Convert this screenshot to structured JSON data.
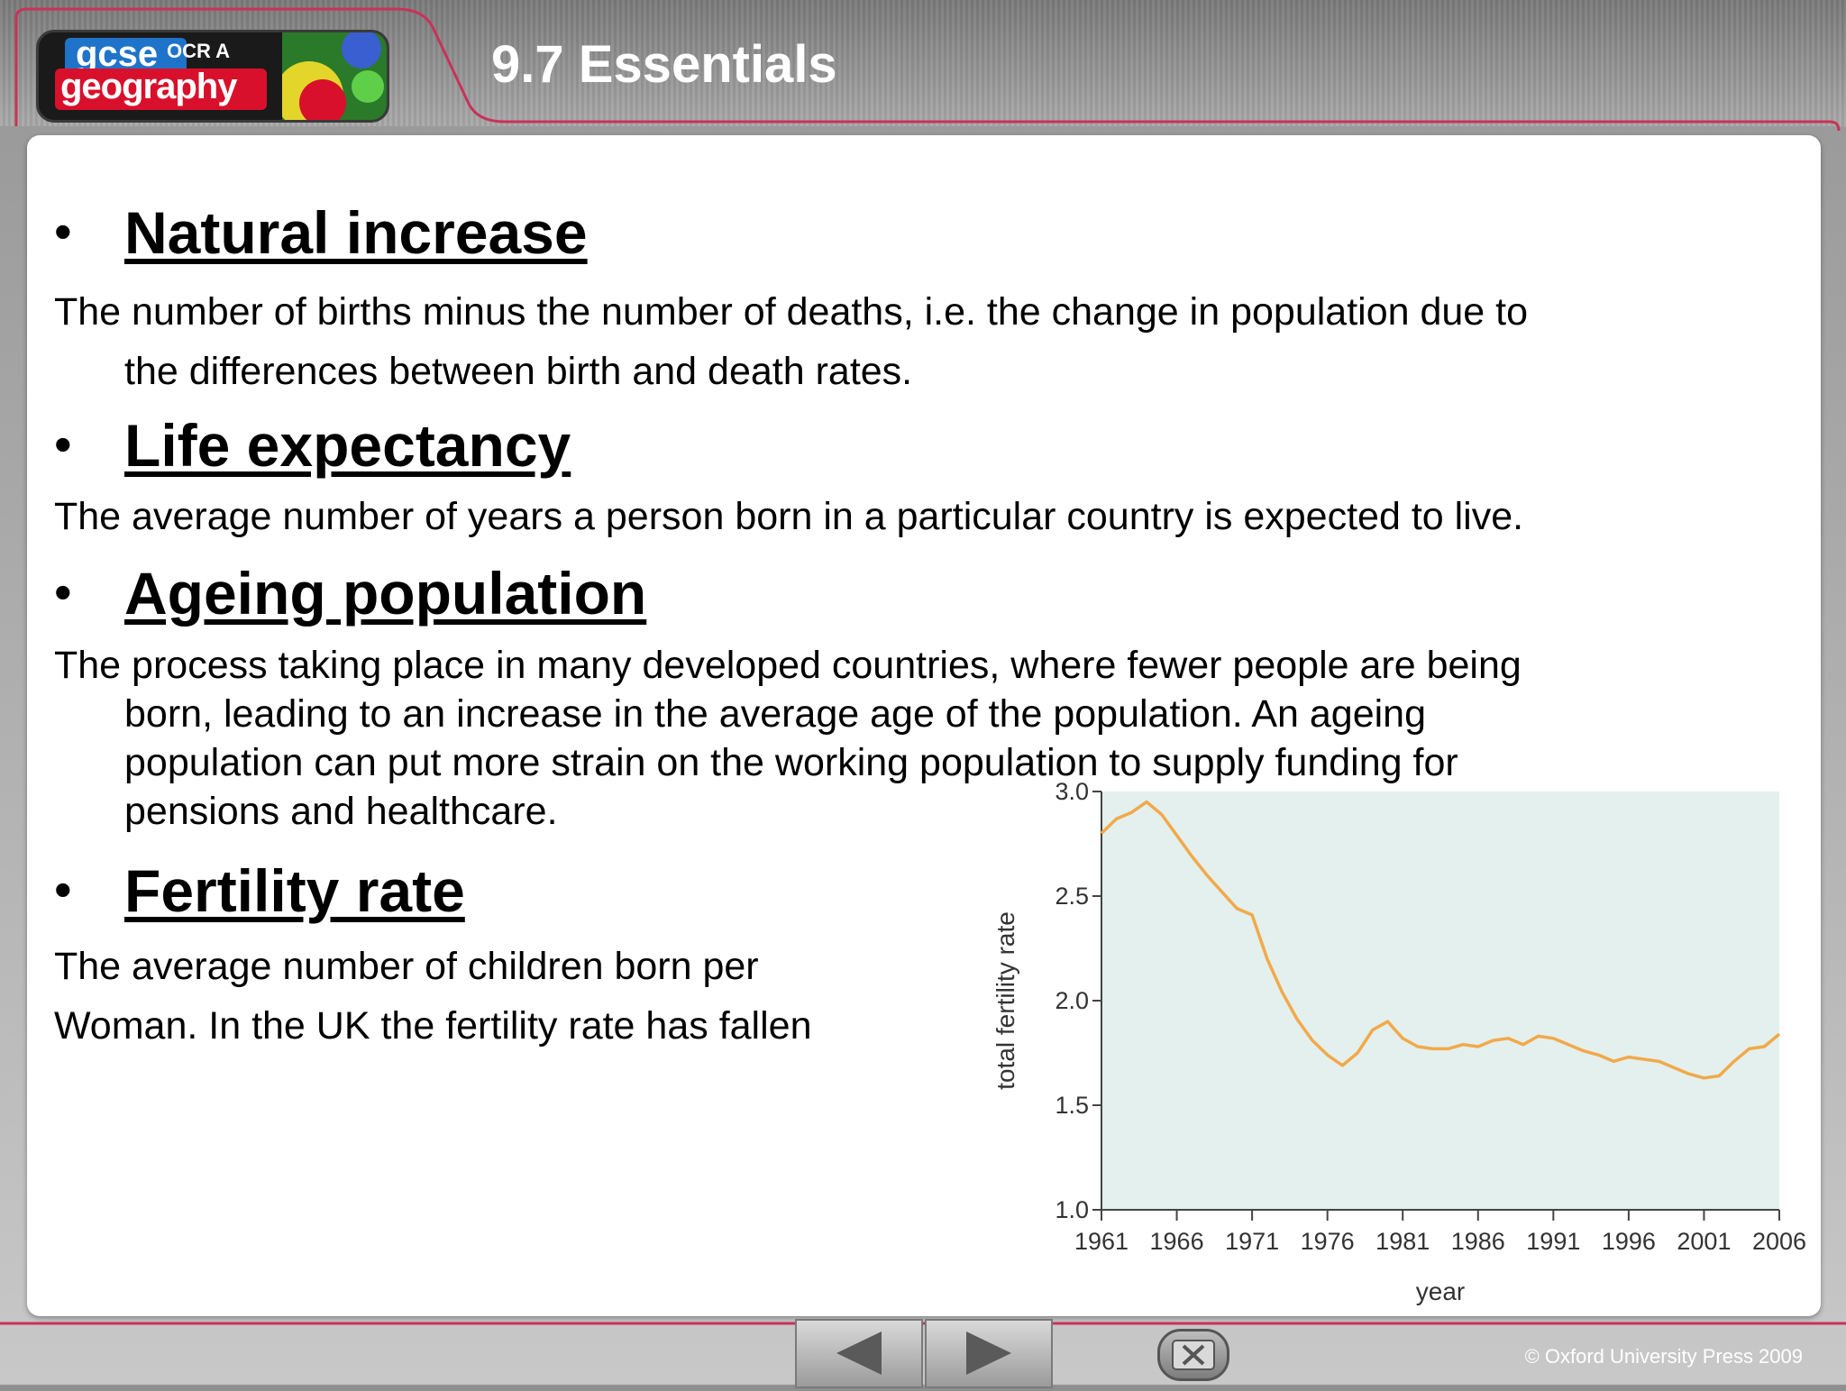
{
  "logo": {
    "gcse": "gcse",
    "board": "OCR A",
    "subject": "geography"
  },
  "header": {
    "title": "9.7 Essentials"
  },
  "sections": [
    {
      "term": "Natural increase",
      "def_first": "The number of births minus the number of deaths, i.e. the change in population due to",
      "def_rest": "the differences between birth and death rates."
    },
    {
      "term": "Life expectancy",
      "def_first": "The average number of years a person born in a particular country is expected to live.",
      "def_rest": ""
    },
    {
      "term": "Ageing population",
      "def_first": "The process taking place in many developed countries, where fewer people are being",
      "def_rest": "born, leading to an increase in the average age of the population. An ageing population can put more strain on the working population to supply funding for pensions and healthcare."
    },
    {
      "term": "Fertility rate",
      "def_first": "The average number of children born per",
      "def_rest": "Woman. In the UK the fertility rate has fallen"
    }
  ],
  "bullet": "•",
  "navigation": {
    "prev_icon": "triangle-left-icon",
    "next_icon": "triangle-right-icon",
    "close_icon": "close-x-icon"
  },
  "footer": {
    "copyright": "© Oxford University Press 2009"
  },
  "colors": {
    "accent": "#c8325a",
    "plot_bg": "#e3f0ee",
    "line": "#f2a94a"
  },
  "chart_data": {
    "type": "line",
    "xlabel": "year",
    "ylabel": "total fertility rate",
    "xlim": [
      1961,
      2006
    ],
    "ylim": [
      1.0,
      3.0
    ],
    "xticks": [
      1961,
      1966,
      1971,
      1976,
      1981,
      1986,
      1991,
      1996,
      2001,
      2006
    ],
    "yticks": [
      "1.0",
      "1.5",
      "2.0",
      "2.5",
      "3.0"
    ],
    "series": [
      {
        "x": [
          1961,
          1962,
          1963,
          1964,
          1965,
          1966,
          1967,
          1968,
          1969,
          1970,
          1971,
          1972,
          1973,
          1974,
          1975,
          1976,
          1977,
          1978,
          1979,
          1980,
          1981,
          1982,
          1983,
          1984,
          1985,
          1986,
          1987,
          1988,
          1989,
          1990,
          1991,
          1992,
          1993,
          1994,
          1995,
          1996,
          1997,
          1998,
          1999,
          2000,
          2001,
          2002,
          2003,
          2004,
          2005,
          2006
        ],
        "y": [
          2.8,
          2.87,
          2.9,
          2.95,
          2.89,
          2.79,
          2.69,
          2.6,
          2.52,
          2.44,
          2.41,
          2.2,
          2.04,
          1.91,
          1.81,
          1.74,
          1.69,
          1.75,
          1.86,
          1.9,
          1.82,
          1.78,
          1.77,
          1.77,
          1.79,
          1.78,
          1.81,
          1.82,
          1.79,
          1.83,
          1.82,
          1.79,
          1.76,
          1.74,
          1.71,
          1.73,
          1.72,
          1.71,
          1.68,
          1.65,
          1.63,
          1.64,
          1.71,
          1.77,
          1.78,
          1.84
        ]
      }
    ],
    "grid": false
  }
}
